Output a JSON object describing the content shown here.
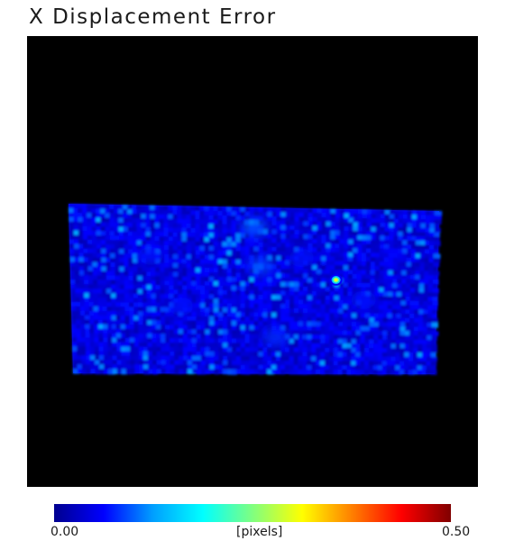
{
  "title": "X Displacement Error",
  "colorbar": {
    "min_label": "0.00",
    "max_label": "0.50",
    "unit_label": "[pixels]",
    "colormap": [
      "#00008f",
      "#0000ff",
      "#00a0ff",
      "#00ffff",
      "#80ff80",
      "#ffff00",
      "#ff8000",
      "#ff0000",
      "#800000"
    ]
  },
  "chart_data": {
    "type": "heatmap",
    "title": "X Displacement Error",
    "colorbar_range": [
      0.0,
      0.5
    ],
    "colorbar_label": "[pixels]",
    "background": "#000000",
    "typical_value_range": [
      0.0,
      0.12
    ],
    "hotspot_peak_value": 0.3
  }
}
